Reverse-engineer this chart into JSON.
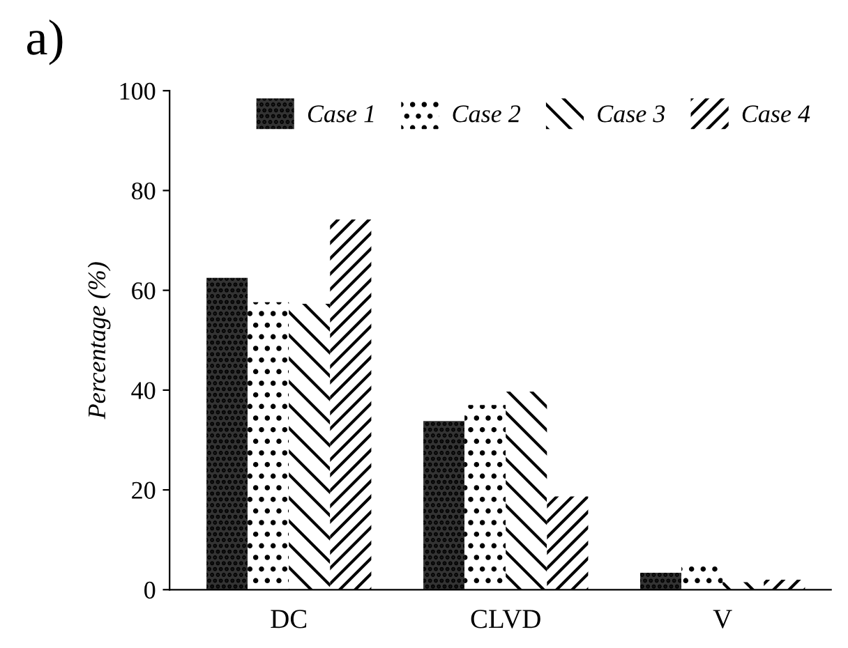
{
  "chart_data": {
    "type": "bar",
    "title": "a)",
    "ylabel": "Percentage (%)",
    "categories": [
      "DC",
      "CLVD",
      "V"
    ],
    "series": [
      {
        "name": "Case 1",
        "color": "#333333",
        "values": [
          62.5,
          33.8,
          3.4
        ]
      },
      {
        "name": "Case 2",
        "color": "#ffffff",
        "values": [
          57.6,
          37,
          5
        ]
      },
      {
        "name": "Case 3",
        "color": "#ffffff",
        "values": [
          57.3,
          39.7,
          1.5
        ]
      },
      {
        "name": "Case 4",
        "color": "#ffffff",
        "values": [
          74.2,
          18.7,
          2
        ]
      }
    ],
    "ylim": [
      0,
      100
    ],
    "yticks": [
      0,
      20,
      40,
      60,
      80,
      100
    ],
    "legend": "top",
    "grid": false
  }
}
